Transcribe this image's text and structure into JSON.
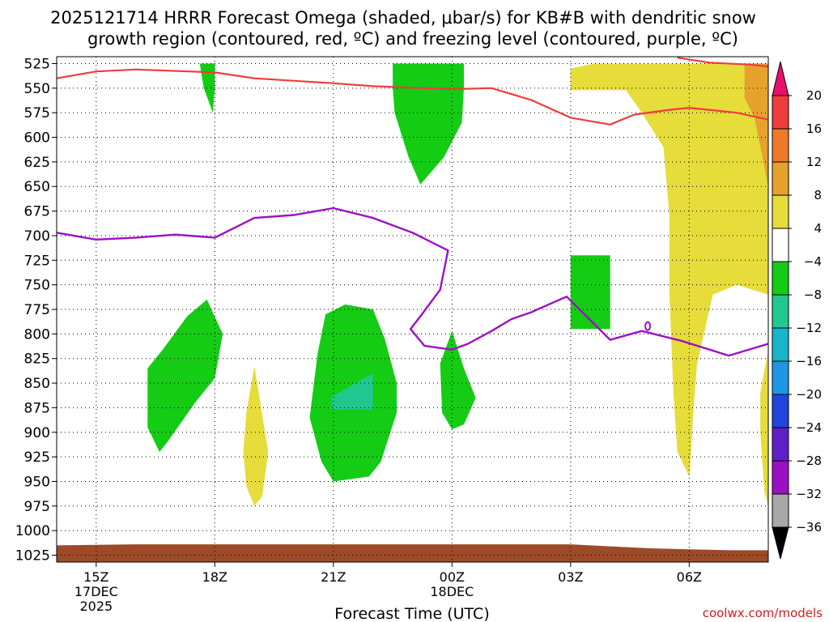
{
  "chart_data": {
    "type": "heatmap",
    "title_line1": "2025121714 HRRR Forecast Omega (shaded, μbar/s) for KB#B with dendritic snow",
    "title_line2": "growth region (contoured, red, ºC) and freezing level (contoured, purple, ºC)",
    "xlabel": "Forecast Time (UTC)",
    "credit": "coolwx.com/models",
    "y_ticks": [
      525,
      550,
      575,
      600,
      625,
      650,
      675,
      700,
      725,
      750,
      775,
      800,
      825,
      850,
      875,
      900,
      925,
      950,
      975,
      1000,
      1025
    ],
    "x_ticks": [
      {
        "hour": 15,
        "label": "15Z",
        "sub1": "17DEC",
        "sub2": "2025"
      },
      {
        "hour": 18,
        "label": "18Z",
        "sub1": "",
        "sub2": ""
      },
      {
        "hour": 21,
        "label": "21Z",
        "sub1": "",
        "sub2": ""
      },
      {
        "hour": 24,
        "label": "00Z",
        "sub1": "18DEC",
        "sub2": ""
      },
      {
        "hour": 27,
        "label": "03Z",
        "sub1": "",
        "sub2": ""
      },
      {
        "hour": 30,
        "label": "06Z",
        "sub1": "",
        "sub2": ""
      }
    ],
    "x_range_hours": [
      14,
      32
    ],
    "y_range_mb": [
      518,
      1032
    ],
    "grid": true,
    "colorbar": {
      "labels": [
        "20",
        "16",
        "12",
        "8",
        "4",
        "−4",
        "−8",
        "−12",
        "−16",
        "−20",
        "−24",
        "−28",
        "−32",
        "−36"
      ],
      "colors": [
        "#e8106a",
        "#f03c3c",
        "#f0782a",
        "#e6a22c",
        "#e6dc3a",
        "#ffffff",
        "#14cc14",
        "#20c890",
        "#18b4cc",
        "#1e96e6",
        "#2046dc",
        "#6020c8",
        "#9c10c4",
        "#a8a8a8",
        "#000000"
      ]
    },
    "omega_regions": [
      {
        "value": -6,
        "color": "#14cc14",
        "points": [
          [
            17.62,
            525
          ],
          [
            18.0,
            525
          ],
          [
            18.0,
            550
          ],
          [
            17.95,
            575
          ],
          [
            17.72,
            550
          ]
        ]
      },
      {
        "value": -6,
        "color": "#14cc14",
        "points": [
          [
            22.5,
            525
          ],
          [
            24.3,
            525
          ],
          [
            24.3,
            550
          ],
          [
            24.25,
            585
          ],
          [
            23.8,
            620
          ],
          [
            23.2,
            648
          ],
          [
            22.9,
            620
          ],
          [
            22.55,
            575
          ],
          [
            22.5,
            550
          ]
        ]
      },
      {
        "value": -6,
        "color": "#14cc14",
        "points": [
          [
            27.0,
            720
          ],
          [
            28.0,
            720
          ],
          [
            28.0,
            795
          ],
          [
            27.0,
            795
          ]
        ]
      },
      {
        "value": -6,
        "color": "#14cc14",
        "points": [
          [
            17.8,
            765
          ],
          [
            18.2,
            800
          ],
          [
            18.0,
            845
          ],
          [
            17.5,
            870
          ],
          [
            16.8,
            910
          ],
          [
            16.6,
            920
          ],
          [
            16.3,
            895
          ],
          [
            16.3,
            835
          ],
          [
            16.7,
            815
          ],
          [
            17.3,
            782
          ]
        ]
      },
      {
        "value": -6,
        "color": "#14cc14",
        "points": [
          [
            20.8,
            780
          ],
          [
            21.3,
            770
          ],
          [
            22.0,
            775
          ],
          [
            22.3,
            805
          ],
          [
            22.6,
            850
          ],
          [
            22.6,
            880
          ],
          [
            22.2,
            930
          ],
          [
            21.9,
            945
          ],
          [
            21.0,
            950
          ],
          [
            20.7,
            930
          ],
          [
            20.4,
            885
          ],
          [
            20.6,
            820
          ]
        ]
      },
      {
        "value": -10,
        "color": "#20c890",
        "points": [
          [
            20.95,
            864
          ],
          [
            22.0,
            840
          ],
          [
            22.0,
            877
          ],
          [
            20.95,
            877
          ]
        ]
      },
      {
        "value": -6,
        "color": "#14cc14",
        "points": [
          [
            24.0,
            797
          ],
          [
            24.3,
            835
          ],
          [
            24.6,
            865
          ],
          [
            24.3,
            892
          ],
          [
            24.0,
            897
          ],
          [
            23.75,
            880
          ],
          [
            23.7,
            830
          ]
        ]
      },
      {
        "value": 6,
        "color": "#e6dc3a",
        "points": [
          [
            19.0,
            833
          ],
          [
            19.35,
            920
          ],
          [
            19.2,
            965
          ],
          [
            19.0,
            975
          ],
          [
            18.8,
            955
          ],
          [
            18.72,
            920
          ],
          [
            18.8,
            880
          ]
        ]
      },
      {
        "value": 6,
        "color": "#e6dc3a",
        "points": [
          [
            28.6,
            525
          ],
          [
            32.0,
            525
          ],
          [
            32.0,
            760
          ],
          [
            31.2,
            750
          ],
          [
            30.6,
            760
          ],
          [
            30.2,
            830
          ],
          [
            30.1,
            880
          ],
          [
            30.05,
            920
          ],
          [
            30.0,
            945
          ],
          [
            29.7,
            920
          ],
          [
            29.6,
            860
          ],
          [
            29.5,
            760
          ],
          [
            29.5,
            680
          ],
          [
            29.35,
            610
          ],
          [
            28.8,
            575
          ],
          [
            28.4,
            552
          ],
          [
            27.0,
            552
          ],
          [
            27.0,
            530
          ],
          [
            27.6,
            525
          ]
        ]
      },
      {
        "value": 6,
        "color": "#e6dc3a",
        "points": [
          [
            31.98,
            820
          ],
          [
            32.0,
            900
          ],
          [
            32.0,
            975
          ],
          [
            31.9,
            960
          ],
          [
            31.8,
            900
          ],
          [
            31.8,
            860
          ]
        ]
      },
      {
        "value": 10,
        "color": "#e6a22c",
        "points": [
          [
            31.4,
            525
          ],
          [
            32.0,
            525
          ],
          [
            32.0,
            650
          ],
          [
            31.85,
            620
          ],
          [
            31.65,
            580
          ],
          [
            31.4,
            560
          ]
        ]
      }
    ],
    "dgz_red_lines": [
      {
        "points": [
          [
            14,
            540
          ],
          [
            15,
            533
          ],
          [
            16,
            531
          ],
          [
            18,
            534
          ],
          [
            19,
            540
          ],
          [
            21,
            545
          ],
          [
            22,
            548
          ],
          [
            24,
            551
          ],
          [
            25,
            550
          ],
          [
            26,
            562
          ],
          [
            27,
            580
          ],
          [
            28,
            587
          ],
          [
            28.6,
            577
          ],
          [
            29.5,
            572
          ],
          [
            30,
            570
          ],
          [
            31.2,
            575
          ],
          [
            32,
            582
          ]
        ]
      },
      {
        "points": [
          [
            29.7,
            519
          ],
          [
            30.5,
            524
          ],
          [
            31.5,
            526
          ],
          [
            32,
            528
          ]
        ]
      }
    ],
    "freezing_level_purple": {
      "points": [
        [
          14,
          697
        ],
        [
          15,
          704
        ],
        [
          16,
          702
        ],
        [
          17,
          699
        ],
        [
          18,
          702
        ],
        [
          19,
          682
        ],
        [
          20,
          679
        ],
        [
          21,
          672
        ],
        [
          22,
          682
        ],
        [
          23,
          697
        ],
        [
          23.9,
          715
        ],
        [
          23.7,
          755
        ],
        [
          23.2,
          782
        ],
        [
          22.95,
          795
        ],
        [
          23.3,
          812
        ],
        [
          24.0,
          816
        ],
        [
          24.4,
          810
        ],
        [
          25,
          797
        ],
        [
          25.5,
          785
        ],
        [
          26,
          778
        ],
        [
          26.9,
          762
        ],
        [
          28.0,
          806
        ],
        [
          28.8,
          797
        ],
        [
          29.8,
          807
        ],
        [
          31.0,
          822
        ],
        [
          32,
          810
        ]
      ],
      "small_loop": {
        "hour": 28.95,
        "pressure": 792
      }
    },
    "terrain_color": "#9c4a28",
    "terrain_top": [
      [
        14,
        1015
      ],
      [
        16,
        1014
      ],
      [
        22,
        1014
      ],
      [
        27,
        1014
      ],
      [
        28,
        1016
      ],
      [
        29,
        1018
      ],
      [
        30,
        1019
      ],
      [
        31,
        1020
      ],
      [
        32,
        1020
      ]
    ]
  }
}
